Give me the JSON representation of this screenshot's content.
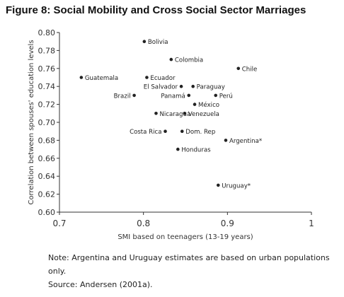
{
  "figure": {
    "title": "Figure 8: Social Mobility and Cross Social Sector Marriages",
    "note": "Note: Argentina and Uruguay estimates are based on urban populations only.",
    "source": "Source: Andersen (2001a)."
  },
  "chart_data": {
    "type": "scatter",
    "title": "Figure 8: Social Mobility and Cross Social Sector Marriages",
    "xlabel": "SMI based on teenagers (13-19 years)",
    "ylabel": "Correlation between spouses' education levels",
    "xlim": [
      0.7,
      1.0
    ],
    "ylim": [
      0.6,
      0.8
    ],
    "xticks": [
      0.7,
      0.8,
      0.9,
      1.0
    ],
    "xtick_labels": [
      "0.7",
      "0.8",
      "0.9",
      "1"
    ],
    "yticks": [
      0.6,
      0.62,
      0.64,
      0.66,
      0.68,
      0.7,
      0.72,
      0.74,
      0.76,
      0.78,
      0.8
    ],
    "ytick_labels": [
      "0.60",
      "0.62",
      "0.64",
      "0.66",
      "0.68",
      "0.70",
      "0.72",
      "0.74",
      "0.76",
      "0.78",
      "0.80"
    ],
    "grid": false,
    "legend": false,
    "point_color": "#222222",
    "points": [
      {
        "label": "Bolivia",
        "x": 0.801,
        "y": 0.79,
        "label_side": "right"
      },
      {
        "label": "Colombia",
        "x": 0.833,
        "y": 0.77,
        "label_side": "right"
      },
      {
        "label": "Chile",
        "x": 0.913,
        "y": 0.76,
        "label_side": "right"
      },
      {
        "label": "Guatemala",
        "x": 0.726,
        "y": 0.75,
        "label_side": "right"
      },
      {
        "label": "Ecuador",
        "x": 0.804,
        "y": 0.75,
        "label_side": "right"
      },
      {
        "label": "El Salvador",
        "x": 0.845,
        "y": 0.74,
        "label_side": "left"
      },
      {
        "label": "Paraguay",
        "x": 0.859,
        "y": 0.74,
        "label_side": "right"
      },
      {
        "label": "Brazil",
        "x": 0.789,
        "y": 0.73,
        "label_side": "left"
      },
      {
        "label": "Panamá",
        "x": 0.854,
        "y": 0.73,
        "label_side": "left"
      },
      {
        "label": "Perú",
        "x": 0.886,
        "y": 0.73,
        "label_side": "right"
      },
      {
        "label": "México",
        "x": 0.861,
        "y": 0.72,
        "label_side": "right"
      },
      {
        "label": "Nicaragua",
        "x": 0.815,
        "y": 0.71,
        "label_side": "right"
      },
      {
        "label": "Venezuela",
        "x": 0.849,
        "y": 0.71,
        "label_side": "right"
      },
      {
        "label": "Costa Rica",
        "x": 0.826,
        "y": 0.69,
        "label_side": "left"
      },
      {
        "label": "Dom. Rep",
        "x": 0.846,
        "y": 0.69,
        "label_side": "right"
      },
      {
        "label": "Argentina*",
        "x": 0.898,
        "y": 0.68,
        "label_side": "right"
      },
      {
        "label": "Honduras",
        "x": 0.841,
        "y": 0.67,
        "label_side": "right"
      },
      {
        "label": "Uruguay*",
        "x": 0.889,
        "y": 0.63,
        "label_side": "right"
      }
    ]
  }
}
